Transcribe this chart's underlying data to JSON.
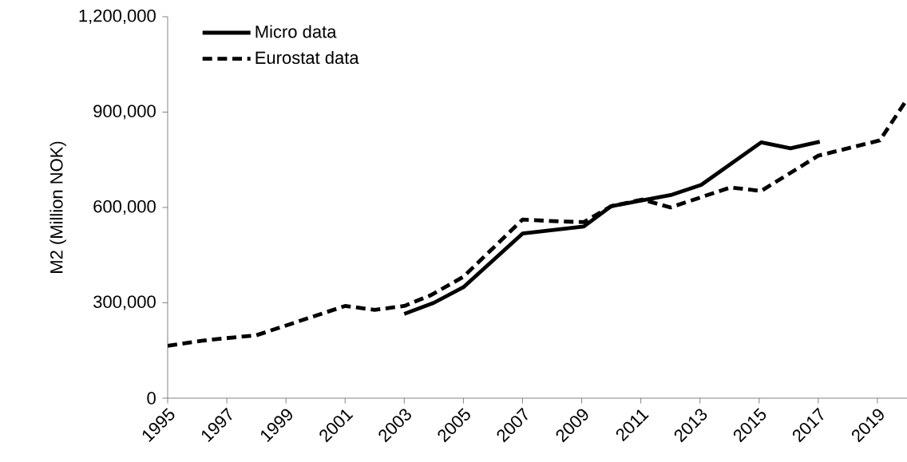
{
  "chart_data": {
    "type": "line",
    "ylabel": "M2 (Million NOK)",
    "legend": "top left",
    "xlim": [
      1995,
      2020
    ],
    "ylim": [
      0,
      1200000
    ],
    "xticks": [
      1995,
      1997,
      1999,
      2001,
      2003,
      2005,
      2007,
      2009,
      2011,
      2013,
      2015,
      2017,
      2019
    ],
    "yticks": [
      {
        "value": 0,
        "label": "0"
      },
      {
        "value": 300000,
        "label": "300,000"
      },
      {
        "value": 600000,
        "label": "600,000"
      },
      {
        "value": 900000,
        "label": "900,000"
      },
      {
        "value": 1200000,
        "label": "1,200,000"
      }
    ],
    "series": [
      {
        "name": "Micro data",
        "color": "#000000",
        "line_style": "solid",
        "x": [
          2003,
          2004,
          2005,
          2007,
          2009.07,
          2010,
          2012.05,
          2013.04,
          2015.07,
          2016.06,
          2017.05
        ],
        "values": [
          265000,
          300000,
          349000,
          518000,
          540000,
          604000,
          640000,
          671000,
          805000,
          786000,
          807000
        ]
      },
      {
        "name": "Eurostat data",
        "color": "#000000",
        "line_style": "dashed",
        "x": [
          1995,
          1996.35,
          1998,
          2001,
          2002,
          2003,
          2003.9,
          2005,
          2007,
          2008.26,
          2009.07,
          2010,
          2011.05,
          2012,
          2014.03,
          2015.07,
          2017,
          2019.08,
          2020
        ],
        "values": [
          165000,
          183000,
          198000,
          290000,
          278000,
          290000,
          324000,
          382000,
          562000,
          556000,
          554000,
          604000,
          625000,
          600000,
          663000,
          652000,
          763000,
          811000,
          940000
        ]
      }
    ]
  }
}
